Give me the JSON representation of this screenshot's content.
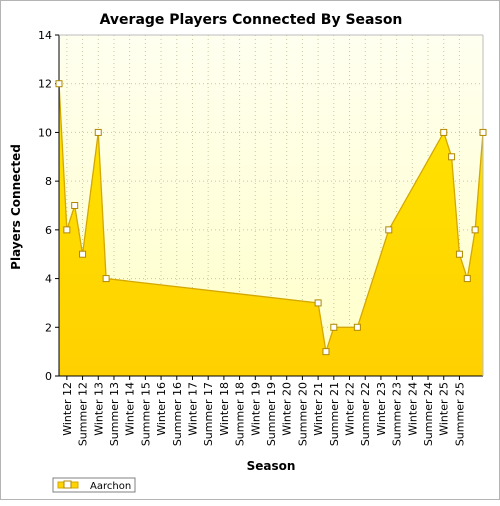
{
  "chart_data": {
    "type": "area",
    "title": "Average Players Connected By Season",
    "xlabel": "Season",
    "ylabel": "Players Connected",
    "ylim": [
      0,
      14
    ],
    "yticks": [
      0,
      2,
      4,
      6,
      8,
      10,
      12,
      14
    ],
    "grid": true,
    "legend_position": "bottom-left",
    "categories": [
      "Winter 12",
      "Summer 12",
      "Winter 13",
      "Summer 13",
      "Winter 14",
      "Summer 15",
      "Winter 16",
      "Summer 16",
      "Winter 17",
      "Summer 17",
      "Winter 18",
      "Summer 18",
      "Winter 19",
      "Summer 19",
      "Winter 20",
      "Summer 20",
      "Winter 21",
      "Summer 21",
      "Winter 22",
      "Summer 22",
      "Winter 23",
      "Summer 23",
      "Winter 24",
      "Summer 24",
      "Winter 25",
      "Summer 25"
    ],
    "series": [
      {
        "name": "Aarchon",
        "color": "#ffd400",
        "line_color": "#d4a800",
        "points": [
          {
            "x": 0,
            "y": 12
          },
          {
            "x": 0.5,
            "y": 6
          },
          {
            "x": 1,
            "y": 7
          },
          {
            "x": 1.5,
            "y": 5
          },
          {
            "x": 2.5,
            "y": 10
          },
          {
            "x": 3,
            "y": 4
          },
          {
            "x": 16.5,
            "y": 3
          },
          {
            "x": 17,
            "y": 1
          },
          {
            "x": 17.5,
            "y": 2
          },
          {
            "x": 19,
            "y": 2
          },
          {
            "x": 21,
            "y": 6
          },
          {
            "x": 24.5,
            "y": 10
          },
          {
            "x": 25,
            "y": 9
          },
          {
            "x": 25.5,
            "y": 5
          },
          {
            "x": 26,
            "y": 4
          },
          {
            "x": 26.5,
            "y": 6
          },
          {
            "x": 27,
            "y": 10
          }
        ]
      }
    ]
  }
}
